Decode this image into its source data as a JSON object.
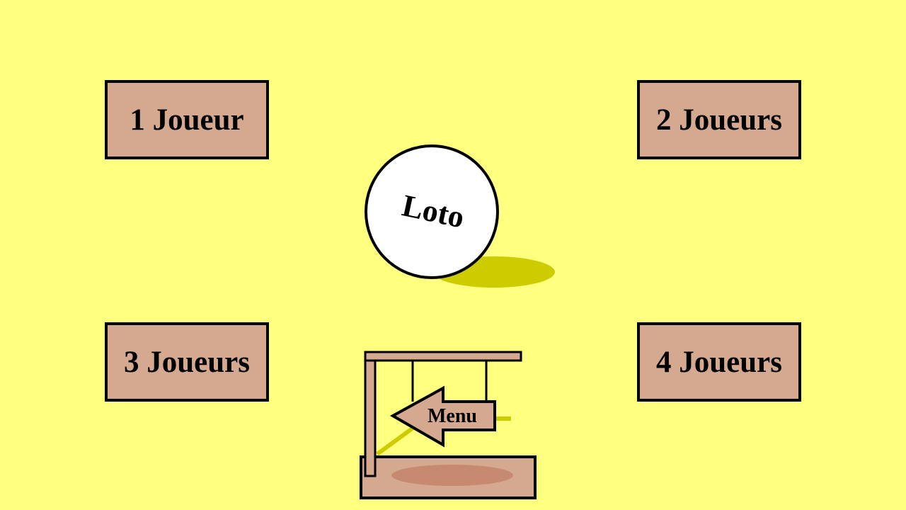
{
  "colors": {
    "background": "#ffff80",
    "button_fill": "#d4a990",
    "shadow": "#cccc00",
    "ball_fill": "#ffffff",
    "sign_shadow": "#c68a70",
    "outline": "#000000"
  },
  "buttons": [
    {
      "label": "1 Joueur"
    },
    {
      "label": "2 Joueurs"
    },
    {
      "label": "3 Joueurs"
    },
    {
      "label": "4 Joueurs"
    }
  ],
  "title_ball": {
    "label": "Loto"
  },
  "menu_sign": {
    "label": "Menu",
    "icon": "arrow-left-icon"
  }
}
